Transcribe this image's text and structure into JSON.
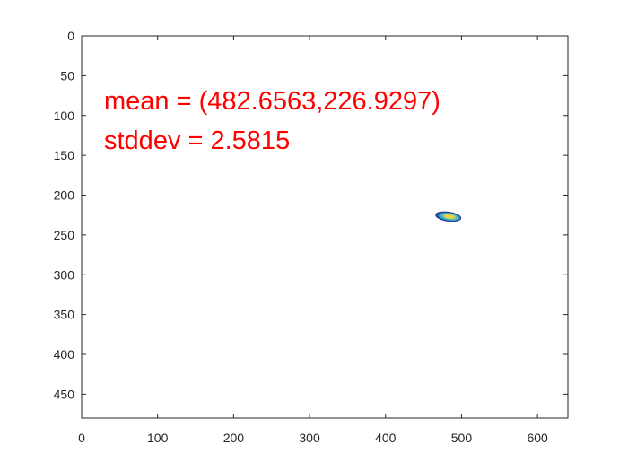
{
  "chart_data": {
    "type": "heatmap",
    "title": "",
    "xlabel": "",
    "ylabel": "",
    "xlim": [
      0,
      640
    ],
    "ylim": [
      0,
      480
    ],
    "y_reversed": true,
    "grid": false,
    "x_ticks": [
      0,
      100,
      200,
      300,
      400,
      500,
      600
    ],
    "y_ticks": [
      0,
      50,
      100,
      150,
      200,
      250,
      300,
      350,
      400,
      450
    ],
    "blob": {
      "center_x": 482.6563,
      "center_y": 226.9297,
      "radius_x": 16.5,
      "radius_y": 5.5,
      "tilt_deg": 8,
      "colors": [
        "#2a3f8e",
        "#2fa8d8",
        "#7fcf8a",
        "#e8d64a"
      ]
    },
    "annotations": {
      "color": "#ff0000",
      "mean_text": "mean = (482.6563,226.9297)",
      "stddev_text": "stddev = 2.5815"
    }
  }
}
